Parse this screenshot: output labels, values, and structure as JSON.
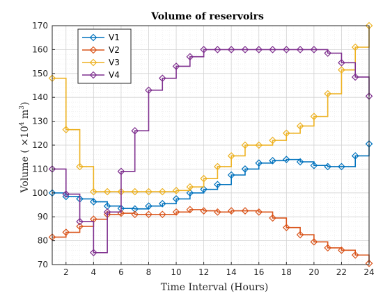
{
  "chart_data": {
    "type": "line",
    "title": "Volume of reservoirs",
    "xlabel": "Time Interval (Hours)",
    "ylabel_main": "Volume ( ×10",
    "ylabel_sup": "4",
    "ylabel_unit": " m",
    "ylabel_sup2": "3",
    "ylabel_end": ")",
    "xlim": [
      1,
      24
    ],
    "ylim": [
      70,
      170
    ],
    "xticks": [
      2,
      4,
      6,
      8,
      10,
      12,
      14,
      16,
      18,
      20,
      22,
      24
    ],
    "yticks": [
      70,
      80,
      90,
      100,
      110,
      120,
      130,
      140,
      150,
      160,
      170
    ],
    "grid": true,
    "minor_grid": true,
    "step_style": "stairs",
    "legend_position": "top-left",
    "x": [
      1,
      2,
      3,
      4,
      5,
      6,
      7,
      8,
      9,
      10,
      11,
      12,
      13,
      14,
      15,
      16,
      17,
      18,
      19,
      20,
      21,
      22,
      23,
      24
    ],
    "series": [
      {
        "name": "V1",
        "color": "#0072BD",
        "values": [
          100,
          98.5,
          97.5,
          96.3,
          94.5,
          93.5,
          93.3,
          94.5,
          95.5,
          97.5,
          100,
          101.5,
          103.5,
          107.5,
          110,
          112.5,
          113.5,
          114,
          113,
          111.5,
          111,
          111,
          115.5,
          120.5
        ]
      },
      {
        "name": "V2",
        "color": "#D95319",
        "values": [
          81.5,
          83.5,
          86,
          89,
          91,
          91.5,
          91,
          91,
          91,
          92,
          93,
          92.5,
          92,
          92.5,
          92.5,
          92,
          89.5,
          85.5,
          82.5,
          79.5,
          77,
          76,
          74,
          70.5
        ]
      },
      {
        "name": "V3",
        "color": "#EDB120",
        "values": [
          148,
          126.5,
          111,
          100.5,
          100.5,
          100.5,
          100.5,
          100.5,
          100.5,
          101,
          102.5,
          106,
          111,
          115.5,
          120,
          120,
          122,
          125,
          128,
          132,
          141.5,
          151.5,
          161,
          170
        ]
      },
      {
        "name": "V4",
        "color": "#7E2F8E",
        "values": [
          110,
          99.5,
          88,
          75,
          92,
          109,
          126,
          143,
          148,
          153,
          157,
          160,
          160,
          160,
          160,
          160,
          160,
          160,
          160,
          160,
          158.5,
          154.5,
          148.5,
          140.5
        ]
      }
    ]
  }
}
